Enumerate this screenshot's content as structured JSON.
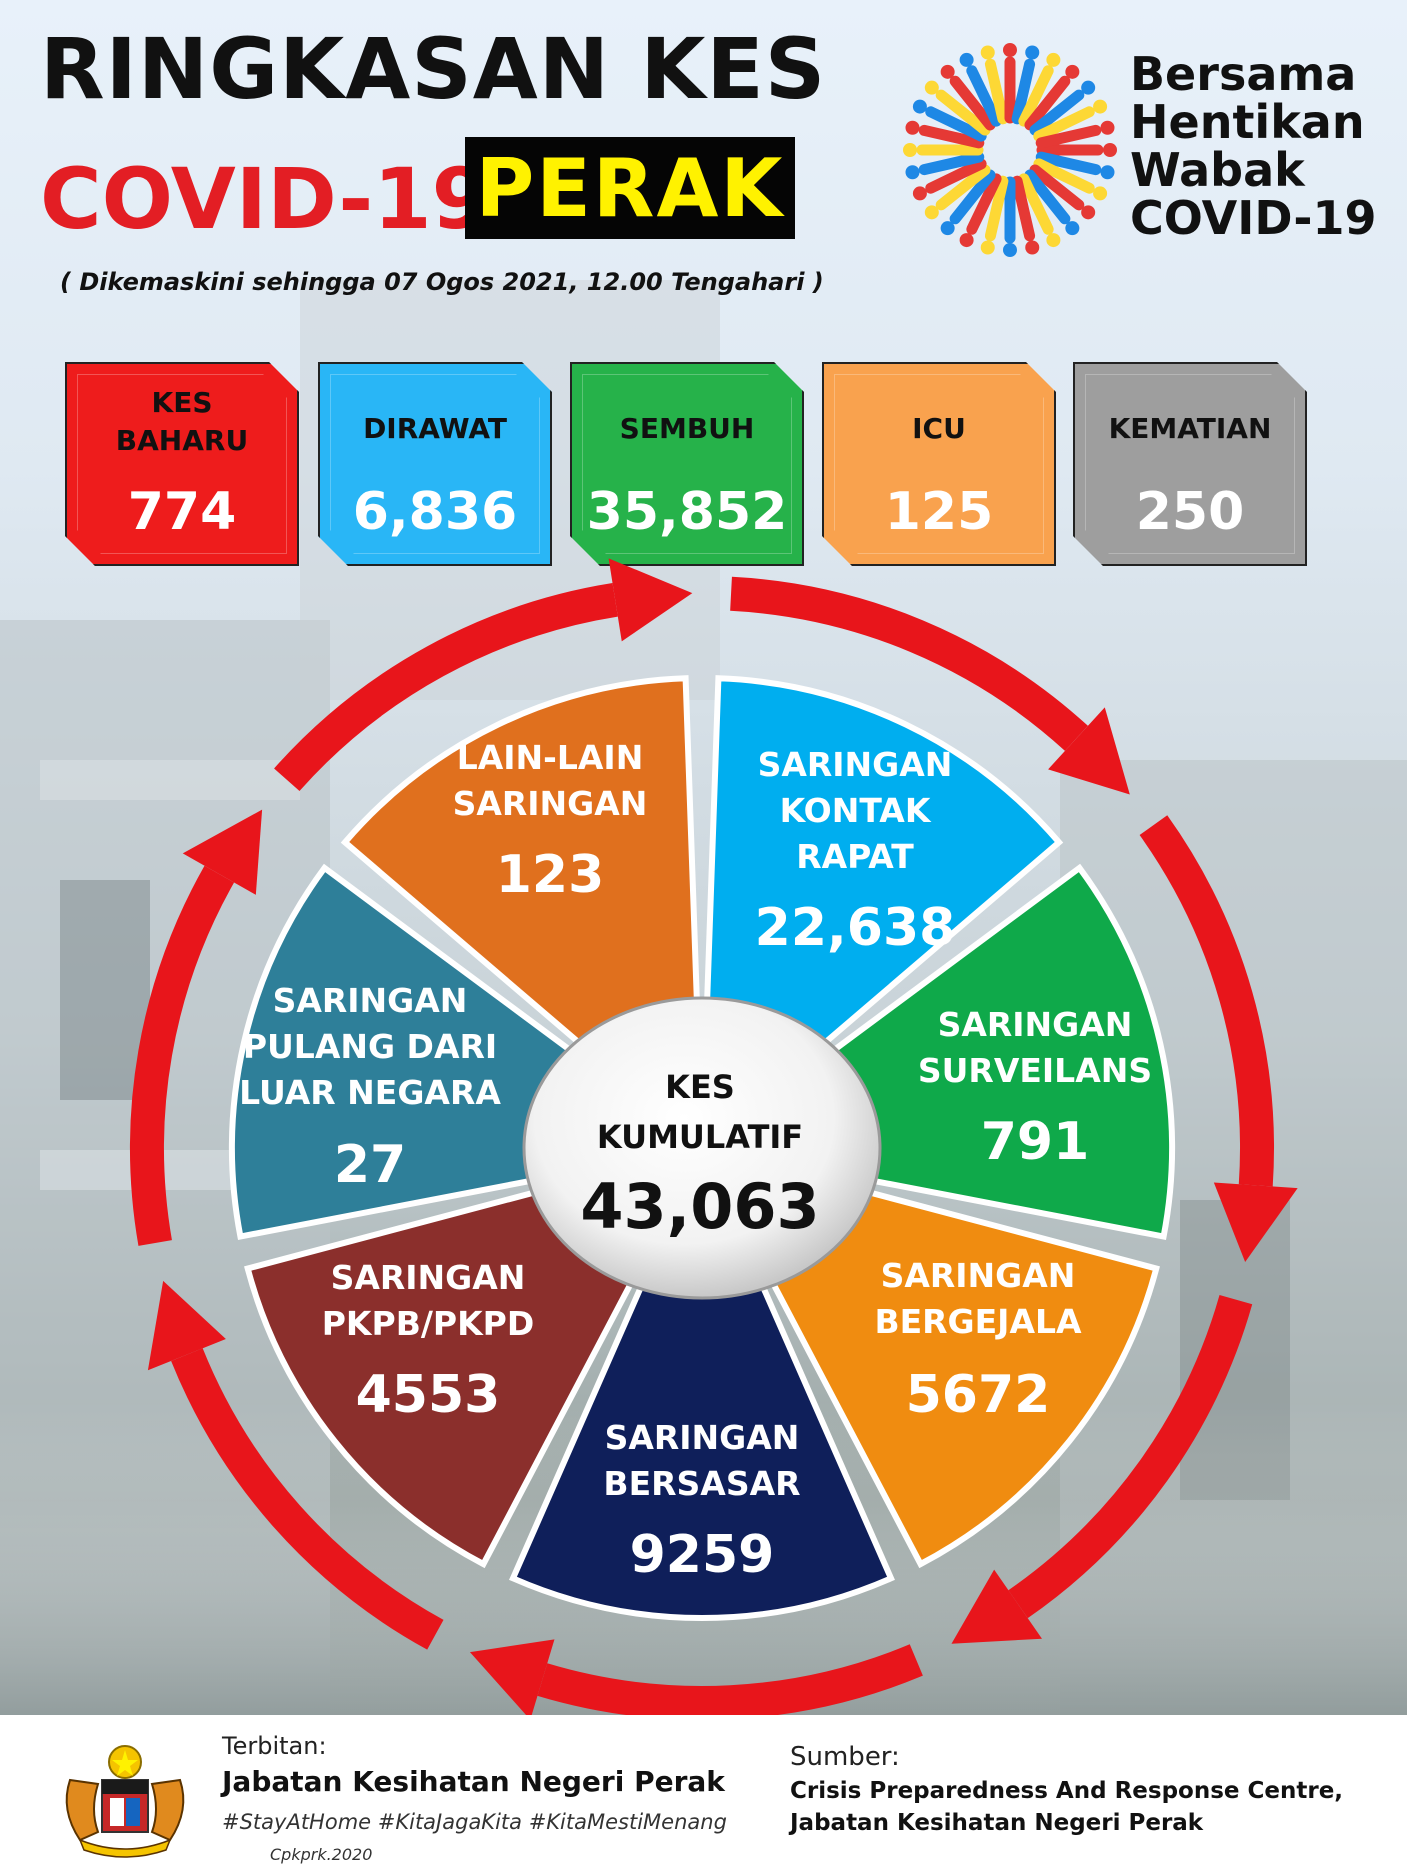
{
  "header": {
    "title_line1": "RINGKASAN KES",
    "title_line2": "COVID-19",
    "state": "PERAK",
    "updated": "( Dikemaskini  sehingga 07 Ogos 2021, 12.00 Tengahari )"
  },
  "logo": {
    "line1": "Bersama",
    "line2": "Hentikan",
    "line3": "Wabak",
    "line4": "COVID-19"
  },
  "stats": [
    {
      "label": "KES\nBAHARU",
      "value": "774",
      "color": "#ee1c1c"
    },
    {
      "label": "DIRAWAT",
      "value": "6,836",
      "color": "#29b6f6"
    },
    {
      "label": "SEMBUH",
      "value": "35,852",
      "color": "#26b24a"
    },
    {
      "label": "ICU",
      "value": "125",
      "color": "#f9a24e"
    },
    {
      "label": "KEMATIAN",
      "value": "250",
      "color": "#9e9e9e"
    }
  ],
  "segments": [
    {
      "label": "LAIN-LAIN\nSARINGAN",
      "value": "123",
      "color": "#e0701e"
    },
    {
      "label": "SARINGAN\nKONTAK\nRAPAT",
      "value": "22,638",
      "color": "#00aeef"
    },
    {
      "label": "SARINGAN\nSURVEILANS",
      "value": "791",
      "color": "#0fa94a"
    },
    {
      "label": "SARINGAN\nBERGEJALA",
      "value": "5672",
      "color": "#f08c10"
    },
    {
      "label": "SARINGAN\nBERSASAR",
      "value": "9259",
      "color": "#0f1f5a"
    },
    {
      "label": "SARINGAN\nPKPB/PKPD",
      "value": "4553",
      "color": "#8b2f2c"
    },
    {
      "label": "SARINGAN\nPULANG DARI\nLUAR NEGARA",
      "value": "27",
      "color": "#2e7f99"
    }
  ],
  "center": {
    "label": "KES\nKUMULATIF",
    "value": "43,063"
  },
  "footer": {
    "terbitan_label": "Terbitan:",
    "publisher": "Jabatan Kesihatan Negeri Perak",
    "hashtags": "#StayAtHome #KitaJagaKita #KitaMestiMenang",
    "code": "Cpkprk.2020",
    "sumber_label": "Sumber:",
    "source_line1": "Crisis Preparedness And Response Centre,",
    "source_line2": "Jabatan Kesihatan Negeri Perak"
  },
  "colors": {
    "ring": "#e8151b",
    "title_red": "#e31e24",
    "perak_yellow": "#fff200"
  }
}
